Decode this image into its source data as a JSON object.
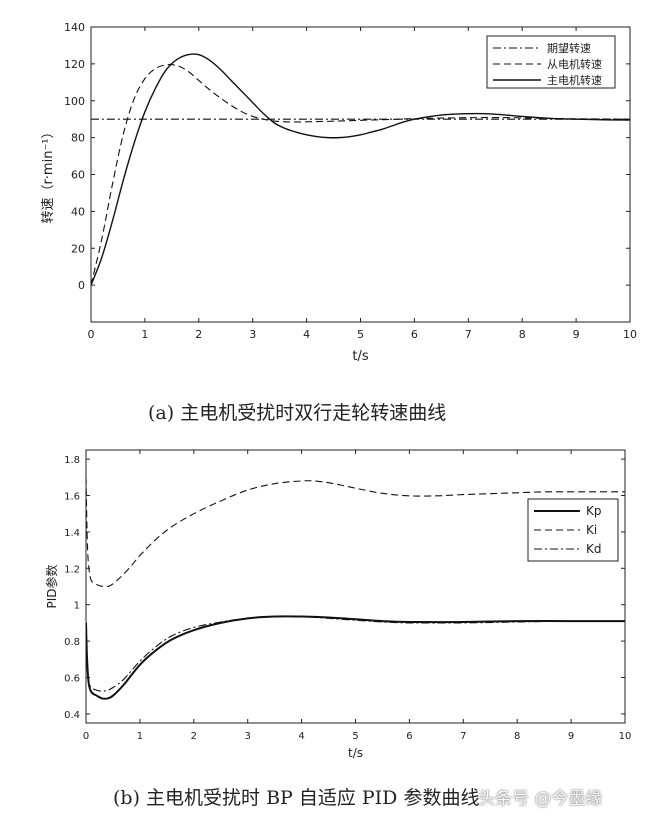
{
  "chart_data": [
    {
      "type": "line",
      "xlabel": "t/s",
      "ylabel": "转速（r·min⁻¹）",
      "xlim": [
        0,
        10
      ],
      "ylim": [
        -20,
        140
      ],
      "xticks": [
        0,
        1,
        2,
        3,
        4,
        5,
        6,
        7,
        8,
        9,
        10
      ],
      "yticks": [
        0,
        20,
        40,
        60,
        80,
        100,
        120,
        140
      ],
      "legend_position": "top-right",
      "grid": false,
      "series": [
        {
          "name": "期望转速",
          "style": "dashdot",
          "x": [
            0,
            10
          ],
          "y": [
            90,
            90
          ]
        },
        {
          "name": "从电机转速",
          "style": "dashed",
          "x": [
            0,
            0.2,
            0.4,
            0.6,
            0.8,
            1.0,
            1.2,
            1.4,
            1.6,
            1.8,
            2.0,
            2.2,
            2.4,
            2.6,
            2.8,
            3.0,
            3.2,
            3.4,
            3.6,
            3.8,
            4.0,
            4.5,
            5.0,
            5.5,
            6.0,
            6.5,
            7.0,
            7.5,
            8.0,
            8.5,
            9.0,
            9.5,
            10
          ],
          "y": [
            0,
            25,
            55,
            82,
            101,
            112,
            117.5,
            119.5,
            119,
            116,
            111,
            106,
            101.5,
            97.5,
            94,
            91.5,
            90,
            89,
            88.6,
            88.5,
            88.6,
            88.9,
            89.4,
            89.8,
            90.3,
            90.6,
            90.8,
            90.9,
            90.7,
            90.4,
            90.2,
            90.1,
            90
          ]
        },
        {
          "name": "主电机转速",
          "style": "solid",
          "x": [
            0,
            0.2,
            0.4,
            0.6,
            0.8,
            1.0,
            1.2,
            1.4,
            1.6,
            1.8,
            2.0,
            2.2,
            2.4,
            2.6,
            2.8,
            3.0,
            3.2,
            3.4,
            3.6,
            3.8,
            4.0,
            4.2,
            4.4,
            4.6,
            4.8,
            5.0,
            5.2,
            5.4,
            5.6,
            5.8,
            6.0,
            6.3,
            6.6,
            7.0,
            7.3,
            7.6,
            8.0,
            8.5,
            9.0,
            9.5,
            10
          ],
          "y": [
            0,
            15,
            35,
            57,
            77,
            94,
            107,
            117,
            122.5,
            125,
            125,
            122,
            117,
            111,
            105,
            99,
            93,
            88,
            85,
            83,
            81.5,
            80.5,
            80,
            80,
            80.5,
            81.5,
            83,
            84.5,
            86.5,
            88.5,
            90,
            91.5,
            92.5,
            93,
            93,
            92.5,
            91.5,
            90.5,
            90,
            89.7,
            89.5
          ]
        }
      ]
    },
    {
      "type": "line",
      "xlabel": "t/s",
      "ylabel": "PID参数",
      "xlim": [
        0,
        10
      ],
      "ylim": [
        0.35,
        1.85
      ],
      "xticks": [
        0,
        1,
        2,
        3,
        4,
        5,
        6,
        7,
        8,
        9,
        10
      ],
      "yticks": [
        0.4,
        0.6,
        0.8,
        1,
        1.2,
        1.4,
        1.6,
        1.8
      ],
      "legend_position": "top-right",
      "grid": false,
      "series": [
        {
          "name": "Kp",
          "style": "solid",
          "x": [
            0,
            0.02,
            0.05,
            0.1,
            0.2,
            0.3,
            0.4,
            0.5,
            0.7,
            1.0,
            1.3,
            1.6,
            2.0,
            2.5,
            3.0,
            3.5,
            4.0,
            4.5,
            5.0,
            5.5,
            6.0,
            7.0,
            8.0,
            9.0,
            10
          ],
          "y": [
            0.9,
            0.7,
            0.57,
            0.52,
            0.5,
            0.485,
            0.485,
            0.5,
            0.56,
            0.67,
            0.75,
            0.81,
            0.86,
            0.9,
            0.925,
            0.935,
            0.935,
            0.93,
            0.92,
            0.91,
            0.905,
            0.905,
            0.91,
            0.91,
            0.91
          ]
        },
        {
          "name": "Ki",
          "style": "dashed",
          "x": [
            0,
            0.03,
            0.08,
            0.15,
            0.25,
            0.35,
            0.45,
            0.6,
            0.8,
            1.0,
            1.3,
            1.6,
            2.0,
            2.5,
            3.0,
            3.5,
            4.0,
            4.3,
            4.6,
            5.0,
            5.5,
            6.0,
            6.5,
            7.0,
            7.5,
            8.0,
            8.5,
            9.0,
            9.5,
            10
          ],
          "y": [
            1.7,
            1.3,
            1.15,
            1.12,
            1.105,
            1.1,
            1.105,
            1.14,
            1.2,
            1.27,
            1.36,
            1.43,
            1.5,
            1.57,
            1.63,
            1.665,
            1.68,
            1.678,
            1.665,
            1.64,
            1.612,
            1.598,
            1.598,
            1.605,
            1.61,
            1.615,
            1.62,
            1.62,
            1.62,
            1.62
          ]
        },
        {
          "name": "Kd",
          "style": "dashdot",
          "x": [
            0,
            0.02,
            0.05,
            0.1,
            0.2,
            0.3,
            0.4,
            0.5,
            0.7,
            1.0,
            1.3,
            1.6,
            2.0,
            2.5,
            3.0,
            3.5,
            4.0,
            4.5,
            5.0,
            5.5,
            6.0,
            7.0,
            8.0,
            9.0,
            10
          ],
          "y": [
            0.88,
            0.7,
            0.58,
            0.545,
            0.53,
            0.525,
            0.53,
            0.545,
            0.59,
            0.69,
            0.77,
            0.83,
            0.875,
            0.905,
            0.925,
            0.935,
            0.935,
            0.925,
            0.915,
            0.905,
            0.9,
            0.9,
            0.905,
            0.91,
            0.91
          ]
        }
      ]
    }
  ],
  "captions": {
    "a": "(a)  主电机受扰时双行走轮转速曲线",
    "b": "(b)  主电机受扰时 BP 自适应 PID 参数曲线"
  },
  "watermark": "头条号 @今墨缘"
}
